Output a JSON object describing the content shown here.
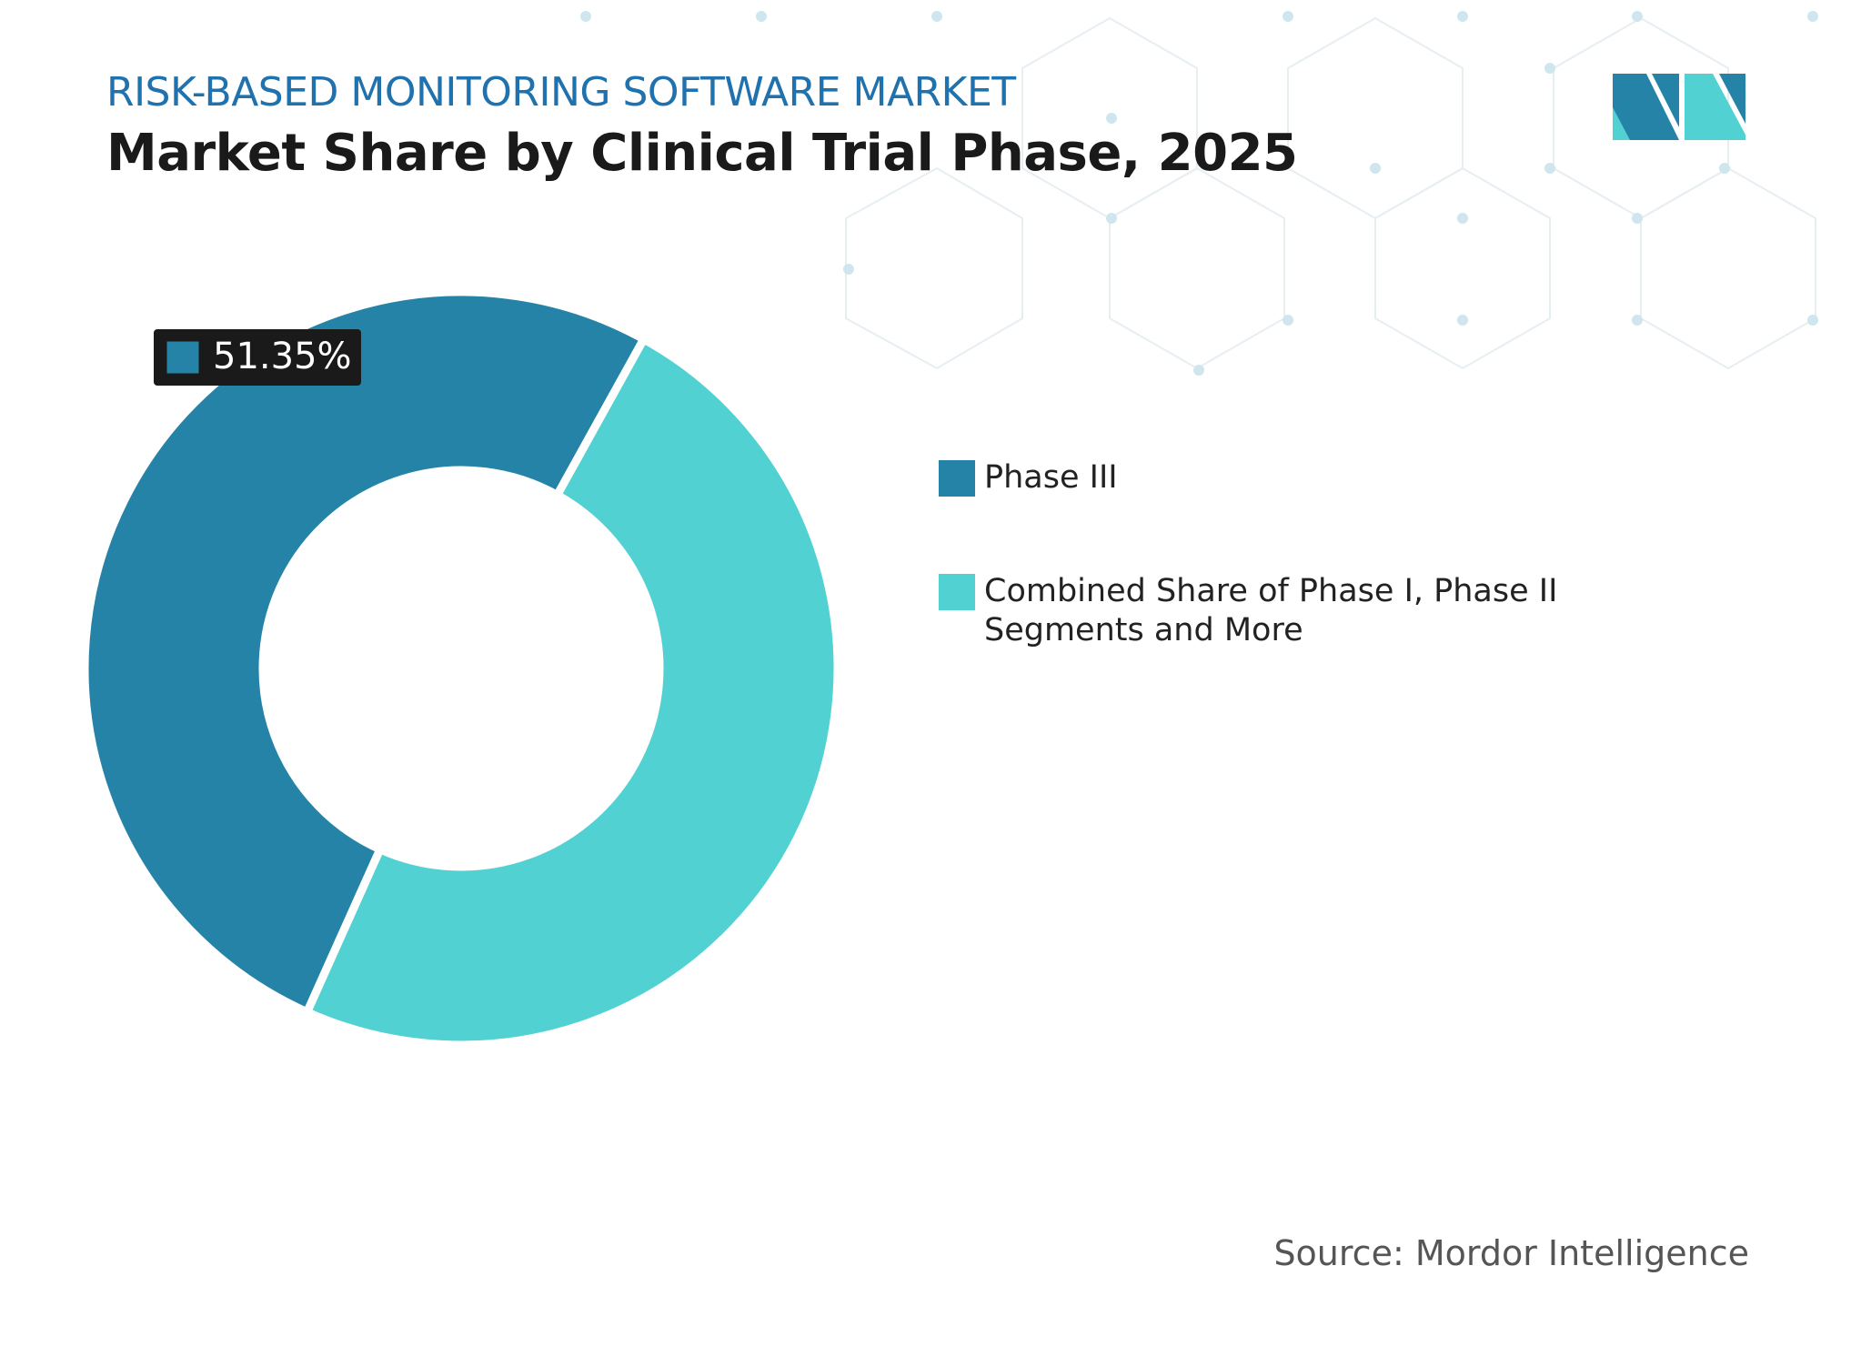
{
  "header": {
    "subtitle": "RISK-BASED MONITORING SOFTWARE MARKET",
    "title": "Market Share by Clinical Trial Phase, 2025"
  },
  "chart_data": {
    "type": "donut",
    "categories": [
      "Phase III",
      "Combined Share of Phase I, Phase II Segments and More"
    ],
    "values": [
      51.35,
      48.65
    ],
    "value_labels": [
      "51.35%",
      null
    ],
    "colors": [
      "#2683a8",
      "#52d1d3"
    ]
  },
  "source": "Source: Mordor Intelligence"
}
